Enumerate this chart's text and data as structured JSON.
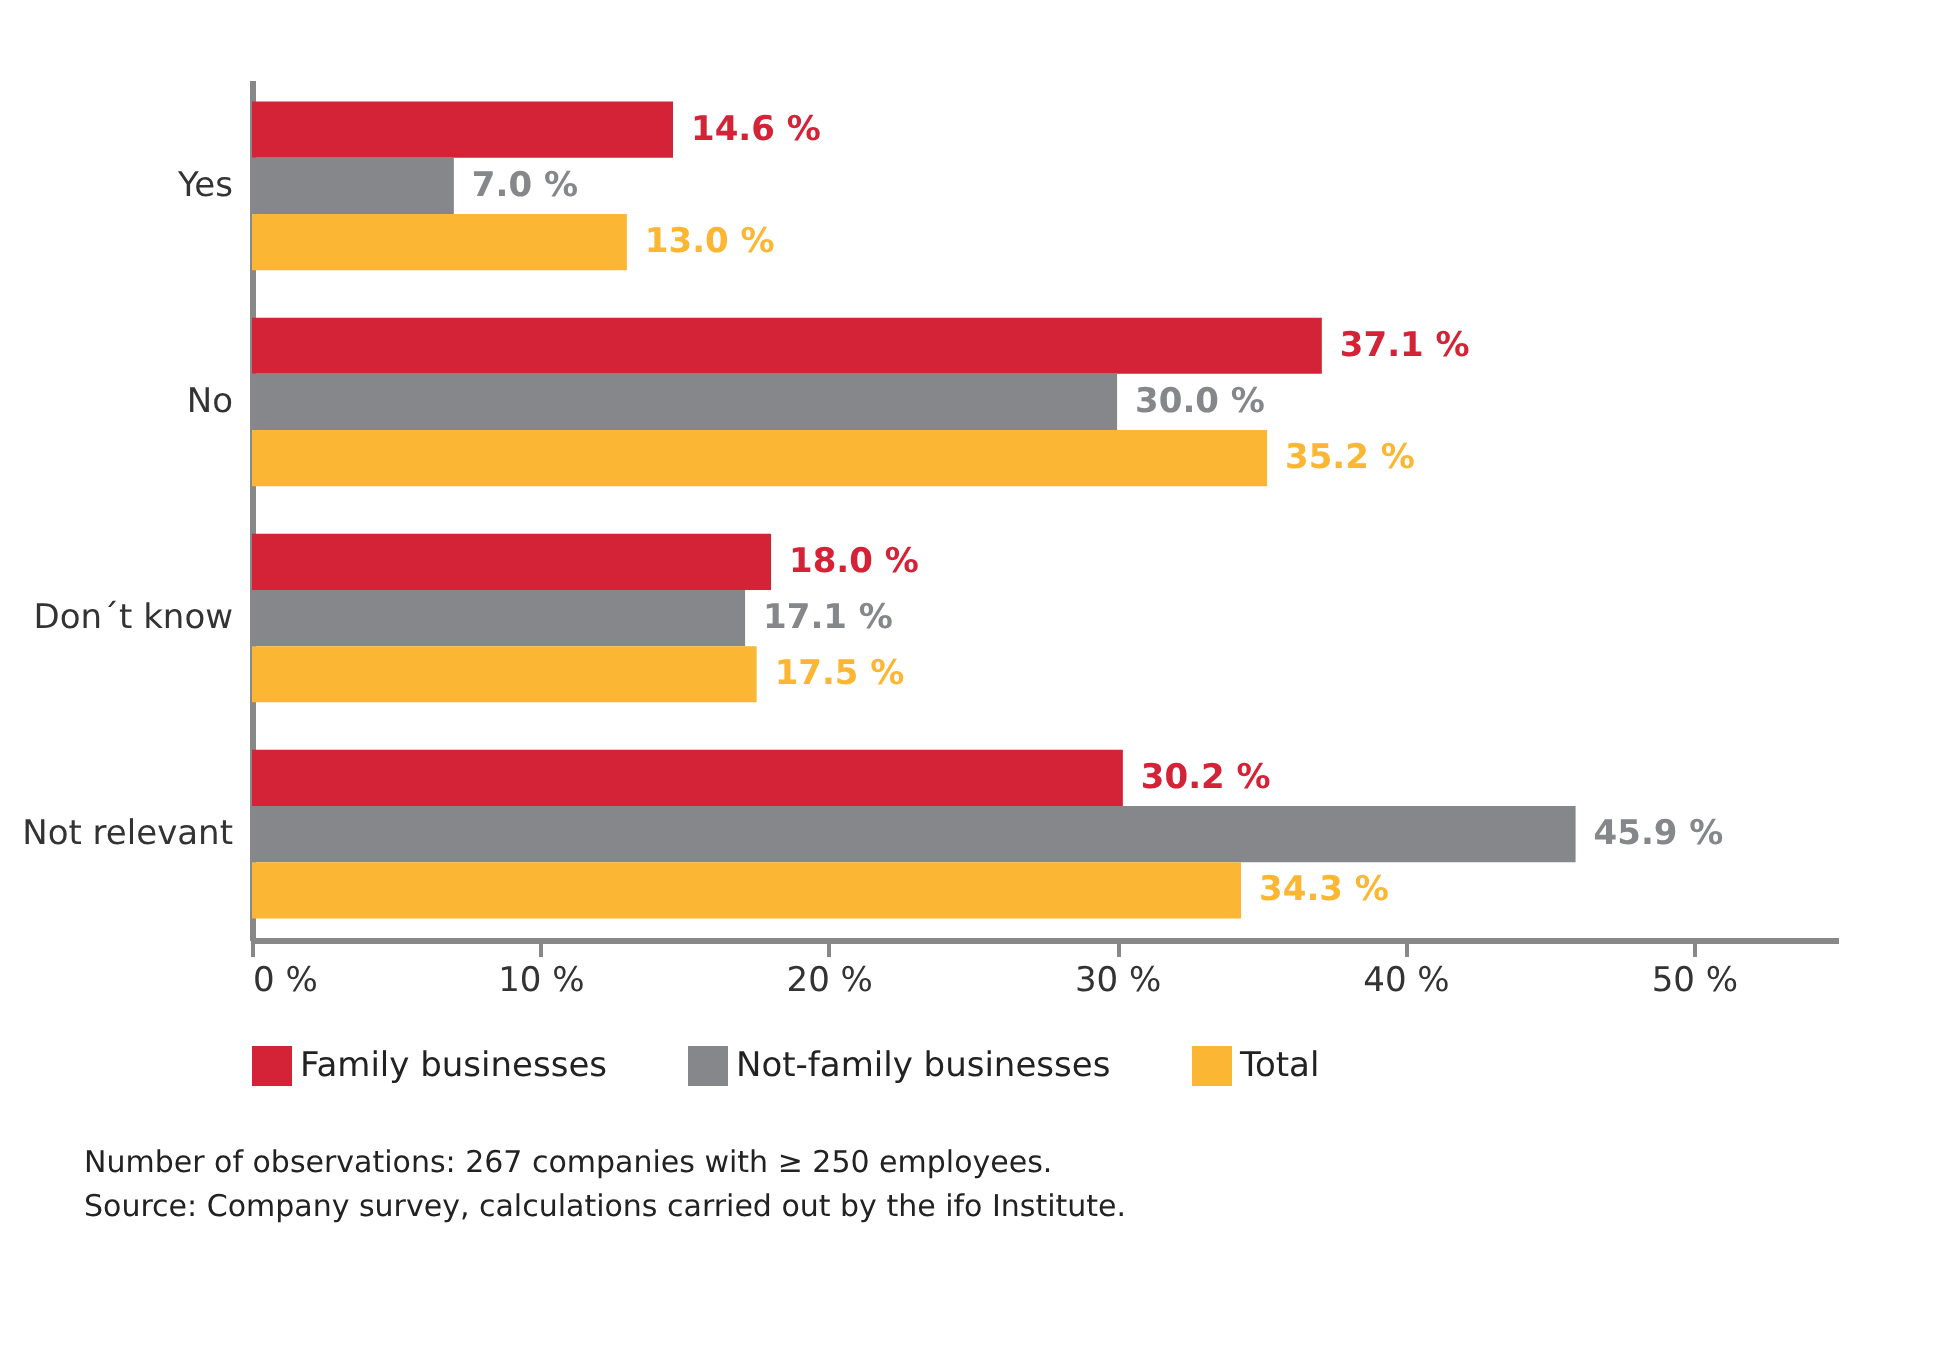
{
  "chart_data": {
    "type": "bar",
    "orientation": "horizontal",
    "categories": [
      "Yes",
      "No",
      "Don´t know",
      "Not relevant"
    ],
    "series": [
      {
        "name": "Family businesses",
        "color": "#d42236",
        "values": [
          14.6,
          37.1,
          18.0,
          30.2
        ],
        "value_labels": [
          "14.6 %",
          "37.1 %",
          "18.0 %",
          "30.2 %"
        ]
      },
      {
        "name": "Not-family businesses",
        "color": "#86878a",
        "values": [
          7.0,
          30.0,
          17.1,
          45.9
        ],
        "value_labels": [
          "7.0 %",
          "30.0 %",
          "17.1 %",
          "45.9 %"
        ]
      },
      {
        "name": "Total",
        "color": "#fbb634",
        "values": [
          13.0,
          35.2,
          17.5,
          34.3
        ],
        "value_labels": [
          "13.0 %",
          "35.2 %",
          "17.5 %",
          "34.3 %"
        ]
      }
    ],
    "xlim": [
      0,
      55
    ],
    "xticks": [
      {
        "value": 0,
        "label": "0 %"
      },
      {
        "value": 10,
        "label": "10 %"
      },
      {
        "value": 20,
        "label": "20 %"
      },
      {
        "value": 30,
        "label": "30 %"
      },
      {
        "value": 40,
        "label": "40 %"
      },
      {
        "value": 50,
        "label": "50 %"
      }
    ],
    "grid": false,
    "legend": "bottom",
    "annotations": [
      "Number of observations: 267 companies with ≥ 250 employees.",
      "Source: Company survey, calculations carried out by the ifo Institute."
    ]
  }
}
